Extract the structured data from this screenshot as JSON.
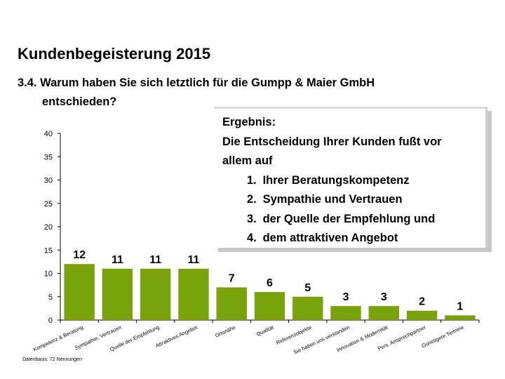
{
  "header": {
    "title": "Kundenbegeisterung 2015",
    "question_line1": "3.4. Warum haben Sie sich letztlich für die Gumpp & Maier GmbH",
    "question_line2": "entschieden?"
  },
  "result": {
    "heading": "Ergebnis:",
    "text_line1": "Die Entscheidung Ihrer Kunden fußt vor",
    "text_line2": "allem auf",
    "items": [
      {
        "num": "1.",
        "label": "Ihrer Beratungskompetenz"
      },
      {
        "num": "2.",
        "label": "Sympathie und Vertrauen"
      },
      {
        "num": "3.",
        "label": "der Quelle der Empfehlung und"
      },
      {
        "num": "4.",
        "label": "dem attraktiven Angebot"
      }
    ]
  },
  "footnote": "Datenbasis: 72 Nennungen",
  "colors": {
    "bar": "#78a30a",
    "axis": "#000000"
  },
  "chart_data": {
    "type": "bar",
    "title": "",
    "xlabel": "",
    "ylabel": "",
    "ylim": [
      0,
      40
    ],
    "yticks": [
      0,
      5,
      10,
      15,
      20,
      25,
      30,
      35,
      40
    ],
    "grid": false,
    "categories": [
      "Kompetenz & Beratung",
      "Sympathie, Vertrauen",
      "Quelle der Empfehlung",
      "Attraktives Angebot",
      "Ortsnähe",
      "Qualität",
      "Referenzobjekte",
      "Sie haben uns verstanden",
      "Innovation & Modernität",
      "Pers. Ansprechpartner",
      "Günstigere Termine"
    ],
    "values": [
      12,
      11,
      11,
      11,
      7,
      6,
      5,
      3,
      3,
      2,
      1
    ]
  }
}
